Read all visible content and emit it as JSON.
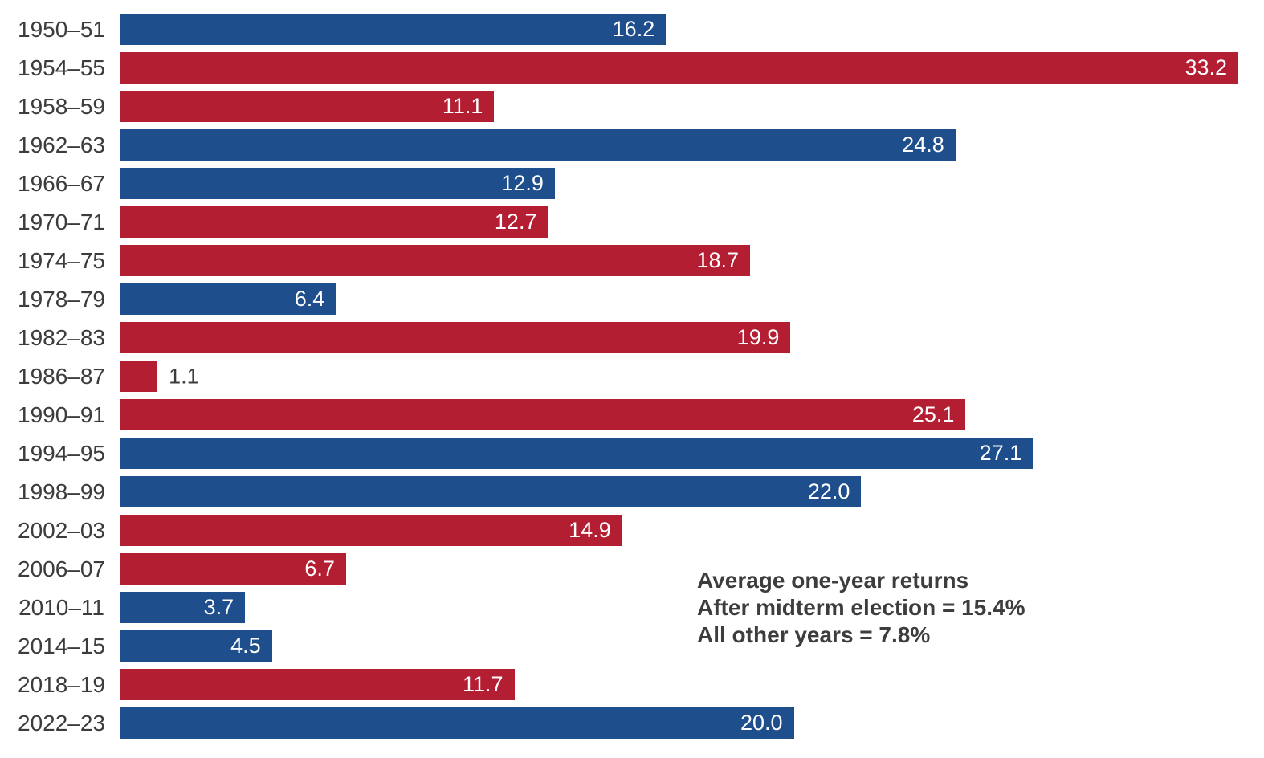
{
  "chart_data": {
    "type": "bar",
    "orientation": "horizontal",
    "title": "",
    "xlabel": "",
    "ylabel": "",
    "axis_max": 33.2,
    "grid": false,
    "legend": false,
    "palette": {
      "blue": "#1F4E8C",
      "red": "#B41E33"
    },
    "value_label_color_inside": "#FFFFFF",
    "value_label_color_outside": "#3C3C3C",
    "bars": [
      {
        "label": "1950–51",
        "value": 16.2,
        "display": "16.2",
        "color": "blue"
      },
      {
        "label": "1954–55",
        "value": 33.2,
        "display": "33.2",
        "color": "red"
      },
      {
        "label": "1958–59",
        "value": 11.1,
        "display": "11.1",
        "color": "red"
      },
      {
        "label": "1962–63",
        "value": 24.8,
        "display": "24.8",
        "color": "blue"
      },
      {
        "label": "1966–67",
        "value": 12.9,
        "display": "12.9",
        "color": "blue"
      },
      {
        "label": "1970–71",
        "value": 12.7,
        "display": "12.7",
        "color": "red"
      },
      {
        "label": "1974–75",
        "value": 18.7,
        "display": "18.7",
        "color": "red"
      },
      {
        "label": "1978–79",
        "value": 6.4,
        "display": "6.4",
        "color": "blue"
      },
      {
        "label": "1982–83",
        "value": 19.9,
        "display": "19.9",
        "color": "red"
      },
      {
        "label": "1986–87",
        "value": 1.1,
        "display": "1.1",
        "color": "red"
      },
      {
        "label": "1990–91",
        "value": 25.1,
        "display": "25.1",
        "color": "red"
      },
      {
        "label": "1994–95",
        "value": 27.1,
        "display": "27.1",
        "color": "blue"
      },
      {
        "label": "1998–99",
        "value": 22.0,
        "display": "22.0",
        "color": "blue"
      },
      {
        "label": "2002–03",
        "value": 14.9,
        "display": "14.9",
        "color": "red"
      },
      {
        "label": "2006–07",
        "value": 6.7,
        "display": "6.7",
        "color": "red"
      },
      {
        "label": "2010–11",
        "value": 3.7,
        "display": "3.7",
        "color": "blue"
      },
      {
        "label": "2014–15",
        "value": 4.5,
        "display": "4.5",
        "color": "blue"
      },
      {
        "label": "2018–19",
        "value": 11.7,
        "display": "11.7",
        "color": "red"
      },
      {
        "label": "2022–23",
        "value": 20.0,
        "display": "20.0",
        "color": "blue"
      }
    ]
  },
  "annotation": {
    "line1": "Average one-year returns",
    "line2": "After midterm election = 15.4%",
    "line3": "All other years = 7.8%"
  }
}
